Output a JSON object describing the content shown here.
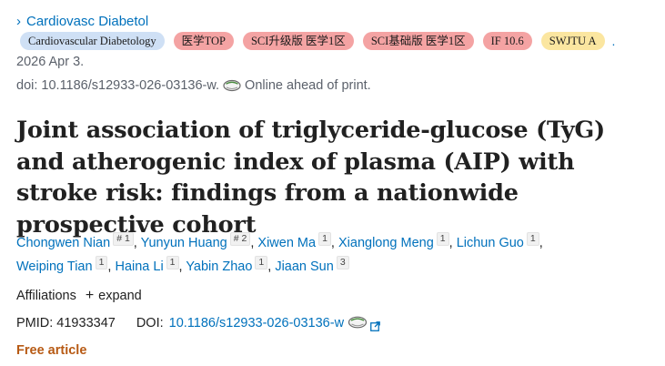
{
  "journal": {
    "chevron": "›",
    "name": "Cardiovasc Diabetol"
  },
  "badges": [
    {
      "label": "Cardiovascular Diabetology",
      "color": "#cfe0f5"
    },
    {
      "label": "医学TOP",
      "color": "#f4a3a3"
    },
    {
      "label": "SCI升级版 医学1区",
      "color": "#f4a3a3"
    },
    {
      "label": "SCI基础版 医学1区",
      "color": "#f4a3a3"
    },
    {
      "label": "IF 10.6",
      "color": "#f4a3a3"
    },
    {
      "label": "SWJTU A",
      "color": "#fbe6a0"
    }
  ],
  "badges_trailing": ".",
  "date": "2026 Apr 3.",
  "doi_line": {
    "text": "doi: 10.1186/s12933-026-03136-w.",
    "status": "Online ahead of print."
  },
  "title": "Joint association of triglyceride-glucose (TyG) and atherogenic index of plasma (AIP) with stroke risk: findings from a nationwide prospective cohort",
  "authors": [
    {
      "name": "Chongwen Nian",
      "sup": "# 1"
    },
    {
      "name": "Yunyun Huang",
      "sup": "# 2"
    },
    {
      "name": "Xiwen Ma",
      "sup": "1"
    },
    {
      "name": "Xianglong Meng",
      "sup": "1"
    },
    {
      "name": "Lichun Guo",
      "sup": "1"
    },
    {
      "name": "Weiping Tian",
      "sup": "1"
    },
    {
      "name": "Haina Li",
      "sup": "1"
    },
    {
      "name": "Yabin Zhao",
      "sup": "1"
    },
    {
      "name": "Jiaan Sun",
      "sup": "3"
    }
  ],
  "affiliations": {
    "label": "Affiliations",
    "plus": "+",
    "expand": "expand"
  },
  "ids": {
    "pmid": "PMID: 41933347",
    "doi_label": "DOI:",
    "doi_value": "10.1186/s12933-026-03136-w"
  },
  "free_article": "Free article",
  "icons": {
    "journal_chevron": "chevron-right-icon",
    "email": "email-icon",
    "external": "external-link-icon"
  },
  "colors": {
    "link": "#0071bc",
    "free": "#b75a14",
    "muted": "#5b616b"
  }
}
